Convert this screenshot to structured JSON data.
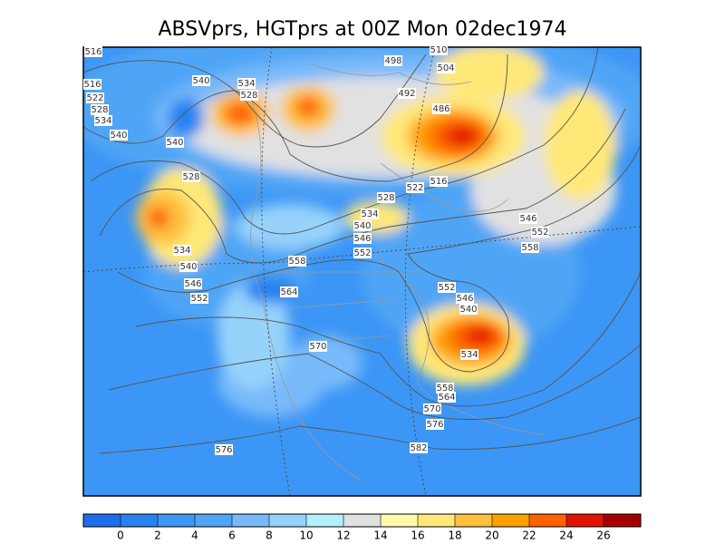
{
  "title": "ABSVprs, HGTprs at 00Z Mon 02dec1974",
  "contour_labels": [
    516,
    516,
    522,
    528,
    534,
    540,
    540,
    540,
    534,
    528,
    498,
    504,
    510,
    492,
    486,
    528,
    534,
    540,
    546,
    552,
    528,
    534,
    540,
    546,
    552,
    558,
    564,
    522,
    516,
    546,
    552,
    558,
    552,
    546,
    540,
    534,
    570,
    558,
    564,
    570,
    576,
    582,
    576
  ],
  "colorbar": {
    "colors": [
      "#1e6eeb",
      "#2882f0",
      "#3c96f5",
      "#50a5f5",
      "#78b9fa",
      "#96d2fa",
      "#b4f0fa",
      "#e1e1e1",
      "#fffaaa",
      "#ffe878",
      "#ffc03c",
      "#ffa000",
      "#ff6000",
      "#e11400",
      "#a50000"
    ],
    "labels": [
      0,
      2,
      4,
      6,
      8,
      10,
      12,
      14,
      16,
      18,
      20,
      22,
      24,
      26
    ]
  }
}
